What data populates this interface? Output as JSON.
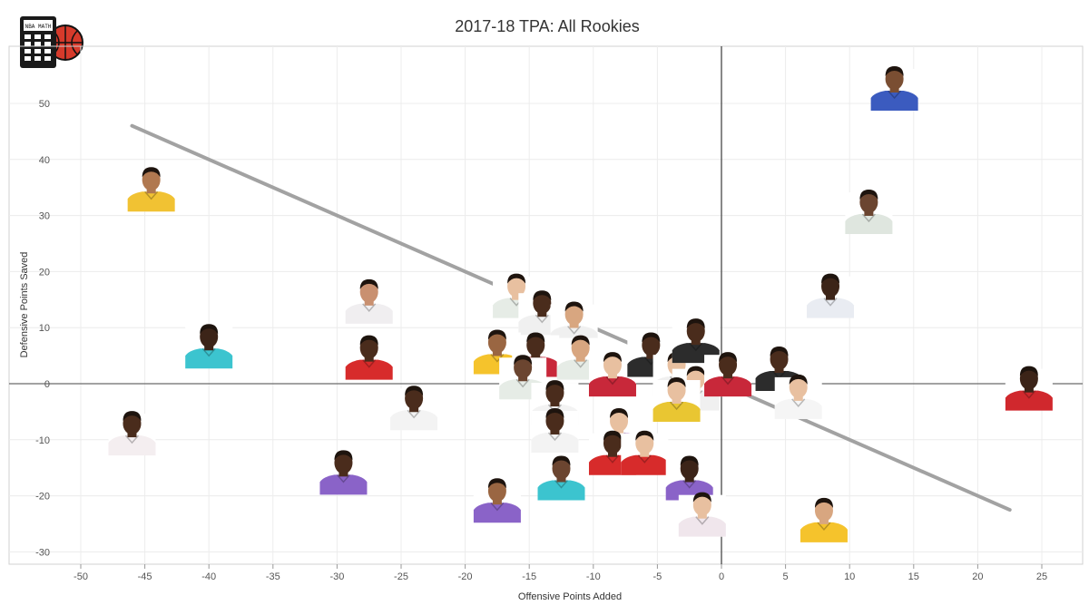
{
  "chart_data": {
    "type": "scatter",
    "title": "2017-18 TPA: All Rookies",
    "xlabel": "Offensive Points Added",
    "ylabel": "Defensive Points Saved",
    "xlim": [
      -52,
      28
    ],
    "ylim": [
      -32,
      58
    ],
    "xticks": [
      -50,
      -45,
      -40,
      -35,
      -30,
      -25,
      -20,
      -15,
      -10,
      -5,
      0,
      5,
      10,
      15,
      20,
      25
    ],
    "yticks": [
      -30,
      -20,
      -10,
      0,
      10,
      20,
      30,
      40,
      50
    ],
    "grid": true,
    "marker": "player headshot",
    "trend_line": {
      "x": [
        -46,
        22.5
      ],
      "y": [
        46,
        -22.5
      ],
      "color": "#999999"
    },
    "logo_text": "NBA MATH",
    "points": [
      {
        "x": 13.5,
        "y": 50,
        "jersey": "#3b5bbf",
        "skin": "#7a4e32"
      },
      {
        "x": 11.5,
        "y": 28,
        "jersey": "#dfe6df",
        "skin": "#6b4530"
      },
      {
        "x": 8.5,
        "y": 13,
        "jersey": "#e9ecf2",
        "skin": "#3c2418"
      },
      {
        "x": 24,
        "y": -3.5,
        "jersey": "#d0282d",
        "skin": "#3c2418"
      },
      {
        "x": 8,
        "y": -27,
        "jersey": "#f5c32c",
        "skin": "#d8a680"
      },
      {
        "x": -44.5,
        "y": 32,
        "jersey": "#f1c233",
        "skin": "#b07850"
      },
      {
        "x": -40,
        "y": 4,
        "jersey": "#3cc4cf",
        "skin": "#3c2418"
      },
      {
        "x": -27.5,
        "y": 12,
        "jersey": "#f0eef0",
        "skin": "#c99070"
      },
      {
        "x": -27.5,
        "y": 2,
        "jersey": "#d72b2b",
        "skin": "#4a2c1c"
      },
      {
        "x": -46,
        "y": -11.5,
        "jersey": "#f4eef0",
        "skin": "#4a2c1c"
      },
      {
        "x": -24,
        "y": -7,
        "jersey": "#f3f3f3",
        "skin": "#4a2c1c"
      },
      {
        "x": -29.5,
        "y": -18.5,
        "jersey": "#8a63c8",
        "skin": "#4a2c1c"
      },
      {
        "x": -17.5,
        "y": -23.5,
        "jersey": "#8a63c8",
        "skin": "#9a6642"
      },
      {
        "x": -16,
        "y": 13,
        "jersey": "#e6ece6",
        "skin": "#e8c0a0"
      },
      {
        "x": -14,
        "y": 10,
        "jersey": "#f0f0f0",
        "skin": "#4a2c1c"
      },
      {
        "x": -11.5,
        "y": 8,
        "jersey": "#f0f0f0",
        "skin": "#d8a680"
      },
      {
        "x": -17.5,
        "y": 3,
        "jersey": "#f5c32c",
        "skin": "#9a6642"
      },
      {
        "x": -14.5,
        "y": 2.5,
        "jersey": "#c8283a",
        "skin": "#4a2c1c"
      },
      {
        "x": -11,
        "y": 2,
        "jersey": "#e6ece6",
        "skin": "#d8a680"
      },
      {
        "x": -15.5,
        "y": -1.5,
        "jersey": "#e6ece6",
        "skin": "#6b4530"
      },
      {
        "x": -13,
        "y": -6,
        "jersey": "#f3f3f3",
        "skin": "#4a2c1c"
      },
      {
        "x": -13,
        "y": -11,
        "jersey": "#f3f3f3",
        "skin": "#4a2c1c"
      },
      {
        "x": -12.5,
        "y": -19.5,
        "jersey": "#3cc4cf",
        "skin": "#6b4530"
      },
      {
        "x": -8.5,
        "y": -1,
        "jersey": "#c8283a",
        "skin": "#e8c0a0"
      },
      {
        "x": -5.5,
        "y": 2.5,
        "jersey": "#2c2c2c",
        "skin": "#4a2c1c"
      },
      {
        "x": -3.5,
        "y": -1,
        "jersey": "#f0f0f0",
        "skin": "#e8c0a0"
      },
      {
        "x": -2,
        "y": -3.5,
        "jersey": "#f0f0f0",
        "skin": "#e8c0a0"
      },
      {
        "x": -2,
        "y": 5,
        "jersey": "#2c2c2c",
        "skin": "#4a2c1c"
      },
      {
        "x": 0.5,
        "y": -1,
        "jersey": "#c8283a",
        "skin": "#4a2c1c"
      },
      {
        "x": 4.5,
        "y": 0,
        "jersey": "#2c2c2c",
        "skin": "#4a2c1c"
      },
      {
        "x": 6,
        "y": -5,
        "jersey": "#f5f5f5",
        "skin": "#e8c0a0"
      },
      {
        "x": -8,
        "y": -11,
        "jersey": "#c9a2d9",
        "skin": "#e8c0a0"
      },
      {
        "x": -8.5,
        "y": -15,
        "jersey": "#d72b2b",
        "skin": "#4a2c1c"
      },
      {
        "x": -6,
        "y": -15,
        "jersey": "#d72b2b",
        "skin": "#e8c0a0"
      },
      {
        "x": -3.5,
        "y": -5.5,
        "jersey": "#e9c632",
        "skin": "#e8c0a0"
      },
      {
        "x": -2.5,
        "y": -19.5,
        "jersey": "#8a63c8",
        "skin": "#3c2418"
      },
      {
        "x": -1.5,
        "y": -26,
        "jersey": "#f0e6ec",
        "skin": "#e8c0a0"
      }
    ]
  }
}
